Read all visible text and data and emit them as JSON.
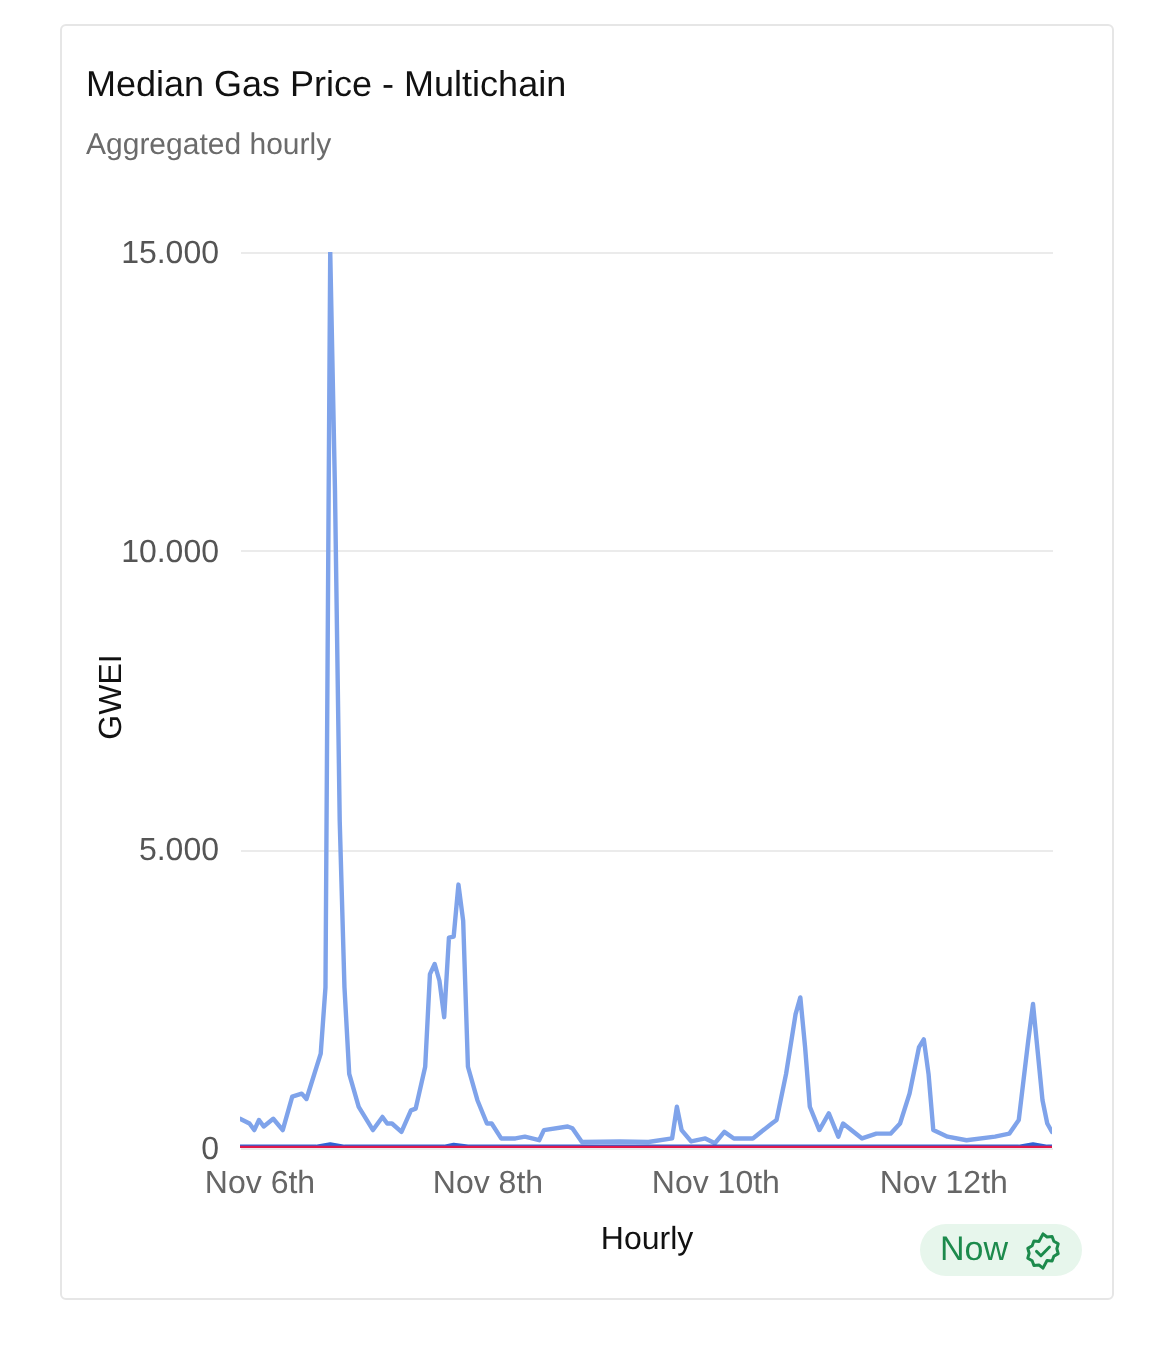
{
  "chart_data": {
    "type": "line",
    "title": "Median Gas Price - Multichain",
    "subtitle": "Aggregated hourly",
    "xlabel": "Hourly",
    "ylabel": "GWEI",
    "annotations": [
      "Now"
    ],
    "series": [
      {
        "color": "#7fa3ea",
        "x": [
          "--11-05T20:00",
          "--11-05T22:00",
          "--11-05T23:00",
          "--11-06T00:00",
          "--11-06T01:00",
          "--11-06T03:00",
          "--11-06T05:00",
          "--11-06T07:00",
          "--11-06T09:00",
          "--11-06T10:00",
          "--11-06T13:00",
          "--11-06T14:00",
          "--11-06T15:00",
          "--11-06T16:00",
          "--11-06T17:00",
          "--11-06T18:00",
          "--11-06T19:00",
          "--11-06T21:00",
          "--11-07T00:00",
          "--11-07T02:00",
          "--11-07T03:00",
          "--11-07T04:00",
          "--11-07T06:00",
          "--11-07T08:00",
          "--11-07T09:00",
          "--11-07T11:00",
          "--11-07T12:00",
          "--11-07T13:00",
          "--11-07T14:00",
          "--11-07T15:00",
          "--11-07T16:00",
          "--11-07T17:00",
          "--11-07T18:00",
          "--11-07T19:00",
          "--11-07T20:00",
          "--11-07T22:00",
          "--11-08T00:00",
          "--11-08T01:00",
          "--11-08T03:00",
          "--11-08T06:00",
          "--11-08T08:00",
          "--11-08T11:00",
          "--11-08T12:00",
          "--11-08T17:00",
          "--11-08T18:00",
          "--11-08T20:00",
          "--11-09T04:00",
          "--11-09T10:00",
          "--11-09T15:00",
          "--11-09T16:00",
          "--11-09T17:00",
          "--11-09T19:00",
          "--11-09T22:00",
          "--11-10T00:00",
          "--11-10T02:00",
          "--11-10T04:00",
          "--11-10T08:00",
          "--11-10T12:00",
          "--11-10T13:00",
          "--11-10T15:00",
          "--11-10T17:00",
          "--11-10T18:00",
          "--11-10T19:00",
          "--11-10T20:00",
          "--11-10T22:00",
          "--11-11T00:00",
          "--11-11T02:00",
          "--11-11T03:00",
          "--11-11T07:00",
          "--11-11T10:00",
          "--11-11T13:00",
          "--11-11T15:00",
          "--11-11T17:00",
          "--11-11T19:00",
          "--11-11T20:00",
          "--11-11T21:00",
          "--11-11T22:00",
          "--11-12T01:00",
          "--11-12T05:00",
          "--11-12T11:00",
          "--11-12T14:00",
          "--11-12T16:00",
          "--11-12T18:00",
          "--11-12T19:00",
          "--11-12T21:00",
          "--11-12T22:00",
          "--11-12T23:00"
        ],
        "values": [
          490,
          410,
          300,
          470,
          360,
          490,
          300,
          860,
          910,
          820,
          1580,
          2690,
          15000,
          11020,
          5470,
          2690,
          1240,
          690,
          300,
          520,
          410,
          410,
          270,
          630,
          660,
          1360,
          2910,
          3080,
          2800,
          2190,
          3520,
          3540,
          4410,
          3800,
          1360,
          800,
          410,
          410,
          160,
          160,
          190,
          130,
          300,
          360,
          330,
          100,
          110,
          100,
          160,
          690,
          300,
          110,
          160,
          80,
          270,
          160,
          160,
          410,
          470,
          1240,
          2240,
          2520,
          1690,
          690,
          300,
          580,
          190,
          410,
          160,
          240,
          240,
          410,
          910,
          1690,
          1820,
          1240,
          300,
          190,
          130,
          190,
          240,
          470,
          1800,
          2410,
          800,
          410,
          270
        ]
      },
      {
        "color": "#2f62d6",
        "x": [
          "--11-05T20:00",
          "--11-06T12:00",
          "--11-06T15:00",
          "--11-06T18:00",
          "--11-07T15:00",
          "--11-07T17:00",
          "--11-07T20:00",
          "--11-12T16:00",
          "--11-12T19:00",
          "--11-12T22:00",
          "--11-12T23:00"
        ],
        "values": [
          20,
          20,
          60,
          20,
          20,
          50,
          20,
          20,
          60,
          20,
          20
        ]
      },
      {
        "color": "#e0194b",
        "x": [
          "--11-05T20:00",
          "--11-12T23:00"
        ],
        "values": [
          0,
          0
        ]
      }
    ],
    "xlim": [
      "--11-05T20:00",
      "--11-12T23:00"
    ],
    "xticks": [
      {
        "value": "--11-06T00:00",
        "label": "Nov 6th"
      },
      {
        "value": "--11-08T00:00",
        "label": "Nov 8th"
      },
      {
        "value": "--11-10T00:00",
        "label": "Nov 10th"
      },
      {
        "value": "--11-12T00:00",
        "label": "Nov 12th"
      }
    ],
    "ylim": [
      0,
      15000
    ],
    "yticks": [
      0,
      {
        "value": 5000,
        "label": "5.000"
      },
      {
        "value": 10000,
        "label": "10.000"
      },
      {
        "value": 15000,
        "label": "15.000"
      }
    ],
    "grid": "y"
  }
}
